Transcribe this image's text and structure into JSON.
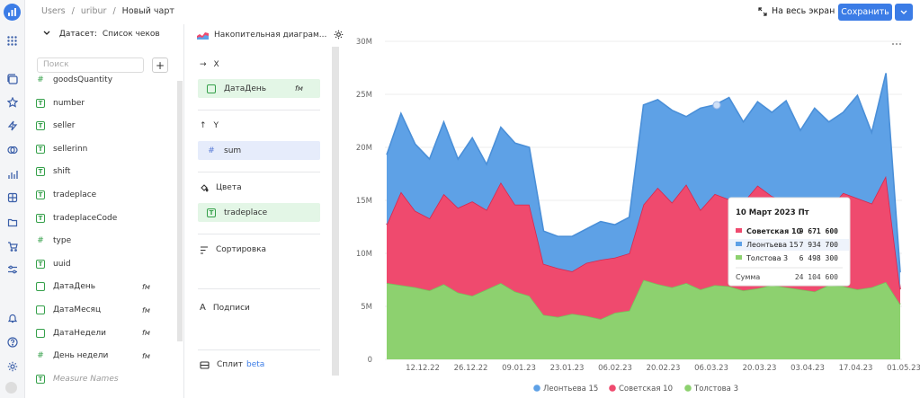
{
  "breadcrumb": {
    "part1": "Users",
    "sep1": "/",
    "part2": "uribur",
    "sep2": "/",
    "current": "Новый чарт"
  },
  "header": {
    "fullscreen_label": "На весь экран",
    "save_label": "Сохранить"
  },
  "dataset": {
    "label": "Датасет:",
    "name": "Список чеков",
    "search_placeholder": "Поиск",
    "fields": [
      {
        "name": "goodsQuantity",
        "type": "number"
      },
      {
        "name": "number",
        "type": "text"
      },
      {
        "name": "seller",
        "type": "text"
      },
      {
        "name": "sellerinn",
        "type": "text"
      },
      {
        "name": "shift",
        "type": "text"
      },
      {
        "name": "tradeplace",
        "type": "text"
      },
      {
        "name": "tradeplaceCode",
        "type": "text"
      },
      {
        "name": "type",
        "type": "number"
      },
      {
        "name": "uuid",
        "type": "text"
      },
      {
        "name": "ДатаДень",
        "type": "date",
        "badge": "fм"
      },
      {
        "name": "ДатаМесяц",
        "type": "date",
        "badge": "fм"
      },
      {
        "name": "ДатаНедели",
        "type": "date",
        "badge": "fм"
      },
      {
        "name": "День недели",
        "type": "number",
        "badge": "fм"
      },
      {
        "name": "Measure Names",
        "type": "text",
        "muted": true
      }
    ]
  },
  "visualization": {
    "type_label": "Накопительная диаграм...",
    "sections": {
      "x": {
        "title": "X",
        "field": "ДатаДень",
        "badge": "fм"
      },
      "y": {
        "title": "Y",
        "field": "sum"
      },
      "colors": {
        "title": "Цвета",
        "field": "tradeplace"
      },
      "sort": {
        "title": "Сортировка"
      },
      "labels": {
        "title": "Подписи"
      },
      "split": {
        "title": "Сплит",
        "beta": "beta"
      }
    }
  },
  "colors": {
    "blue": "#5ea1e6",
    "red": "#ef4a6e",
    "green": "#8dd16f",
    "accent": "#3b7ce6"
  },
  "chart_data": {
    "type": "area",
    "stacked": true,
    "ylim": [
      0,
      30000000
    ],
    "yticks": [
      "0",
      "5M",
      "10M",
      "15M",
      "20M",
      "25M",
      "30M"
    ],
    "xticks": [
      "12.12.22",
      "26.12.22",
      "09.01.23",
      "23.01.23",
      "06.02.23",
      "20.02.23",
      "06.03.23",
      "20.03.23",
      "03.04.23",
      "17.04.23",
      "01.05.23"
    ],
    "grid": true,
    "legend_position": "bottom",
    "series": [
      {
        "name": "Толстова 3",
        "color": "#8dd16f",
        "values": [
          7.2,
          7.0,
          6.8,
          6.5,
          7.1,
          6.3,
          6.0,
          6.6,
          7.2,
          6.4,
          6.0,
          4.2,
          4.0,
          4.3,
          4.1,
          3.8,
          4.4,
          4.6,
          7.5,
          7.1,
          6.8,
          7.2,
          6.6,
          7.0,
          6.9,
          6.5,
          6.7,
          7.0,
          6.8,
          6.6,
          6.4,
          7.0,
          6.9,
          6.6,
          6.8,
          7.3,
          5.2
        ]
      },
      {
        "name": "Советская 10",
        "color": "#ef4a6e",
        "values": [
          5.5,
          8.8,
          7.2,
          6.8,
          8.5,
          8.0,
          8.9,
          7.5,
          9.5,
          8.2,
          8.6,
          4.8,
          4.6,
          4.0,
          5.0,
          5.6,
          5.2,
          5.4,
          7.1,
          9.1,
          8.0,
          9.3,
          7.5,
          8.6,
          8.2,
          8.3,
          9.7,
          8.4,
          8.1,
          7.8,
          8.5,
          7.2,
          8.8,
          8.6,
          7.9,
          10.0,
          1.4
        ]
      },
      {
        "name": "Леонтьева 15",
        "color": "#5ea1e6",
        "values": [
          6.6,
          7.4,
          6.3,
          5.6,
          6.8,
          4.6,
          6.0,
          4.3,
          5.2,
          5.8,
          5.4,
          3.1,
          3.0,
          3.3,
          3.2,
          3.6,
          3.1,
          3.4,
          9.4,
          8.3,
          8.7,
          6.4,
          9.6,
          8.4,
          9.6,
          7.6,
          7.9,
          7.9,
          9.5,
          7.2,
          8.8,
          8.2,
          7.6,
          9.7,
          6.7,
          9.7,
          1.6
        ]
      }
    ],
    "legend": [
      "Леонтьева 15",
      "Советская 10",
      "Толстова 3"
    ],
    "tooltip": {
      "date": "10 Март 2023 Пт",
      "rows": [
        {
          "name": "Советская 10",
          "value": "9 671 600",
          "color": "#ef4a6e"
        },
        {
          "name": "Леонтьева 15",
          "value": "7 934 700",
          "color": "#5ea1e6"
        },
        {
          "name": "Толстова 3",
          "value": "6 498 300",
          "color": "#8dd16f"
        }
      ],
      "sum_label": "Сумма",
      "sum_value": "24 104 600"
    }
  }
}
